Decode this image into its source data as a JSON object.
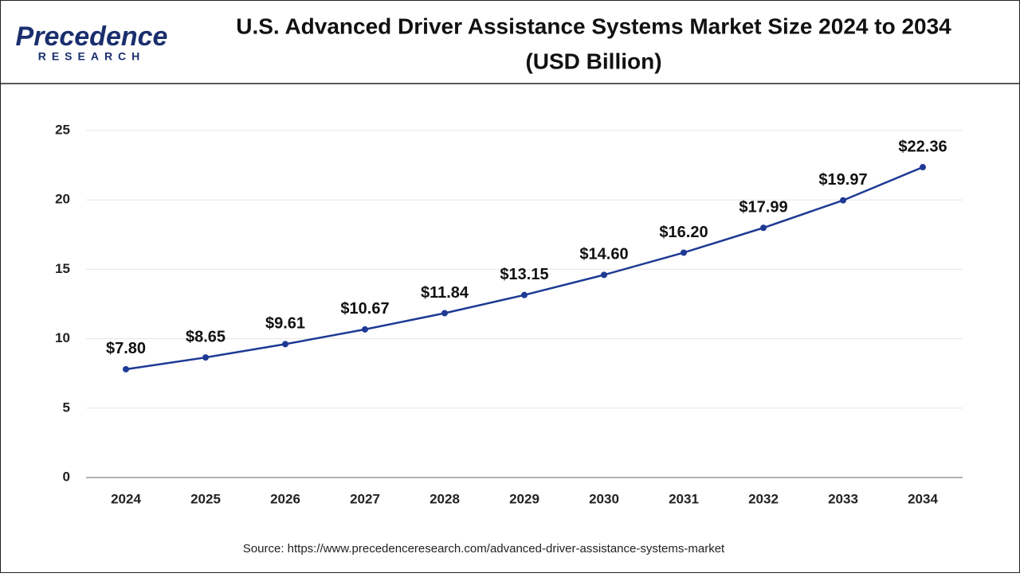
{
  "brand": {
    "name": "Precedence",
    "tagline": "RESEARCH"
  },
  "chart_data": {
    "type": "line",
    "title": "U.S. Advanced Driver Assistance Systems Market Size 2024 to 2034",
    "subtitle": "(USD Billion)",
    "categories": [
      "2024",
      "2025",
      "2026",
      "2027",
      "2028",
      "2029",
      "2030",
      "2031",
      "2032",
      "2033",
      "2034"
    ],
    "values": [
      7.8,
      8.65,
      9.61,
      10.67,
      11.84,
      13.15,
      14.6,
      16.2,
      17.99,
      19.97,
      22.36
    ],
    "value_labels": [
      "$7.80",
      "$8.65",
      "$9.61",
      "$10.67",
      "$11.84",
      "$13.15",
      "$14.60",
      "$16.20",
      "$17.99",
      "$19.97",
      "$22.36"
    ],
    "color": "#1e3a94",
    "ylim": [
      0,
      25
    ],
    "yticks": [
      0,
      5,
      10,
      15,
      20,
      25
    ],
    "grid": true,
    "source": "Source: https://www.precedenceresearch.com/advanced-driver-assistance-systems-market"
  }
}
